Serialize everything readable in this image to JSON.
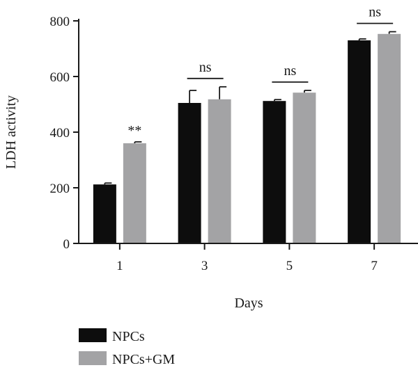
{
  "chart_data": {
    "type": "bar",
    "title": "",
    "xlabel": "Days",
    "ylabel": "LDH activity",
    "categories": [
      "1",
      "3",
      "5",
      "7"
    ],
    "ylim": [
      0,
      800
    ],
    "yticks": [
      0,
      200,
      400,
      600,
      800
    ],
    "series": [
      {
        "name": "NPCs",
        "color": "#0d0d0d",
        "values": [
          212,
          505,
          512,
          730
        ],
        "errors": [
          5,
          45,
          5,
          5
        ]
      },
      {
        "name": "NPCs+GM",
        "color": "#a3a3a5",
        "values": [
          360,
          518,
          542,
          753
        ],
        "errors": [
          5,
          45,
          8,
          8
        ]
      }
    ],
    "annotations": [
      {
        "category": "1",
        "text": "**",
        "type": "star"
      },
      {
        "category": "3",
        "text": "ns",
        "type": "bracket"
      },
      {
        "category": "5",
        "text": "ns",
        "type": "bracket"
      },
      {
        "category": "7",
        "text": "ns",
        "type": "bracket"
      }
    ],
    "legend": {
      "position": "bottom-left"
    },
    "grid": false
  }
}
